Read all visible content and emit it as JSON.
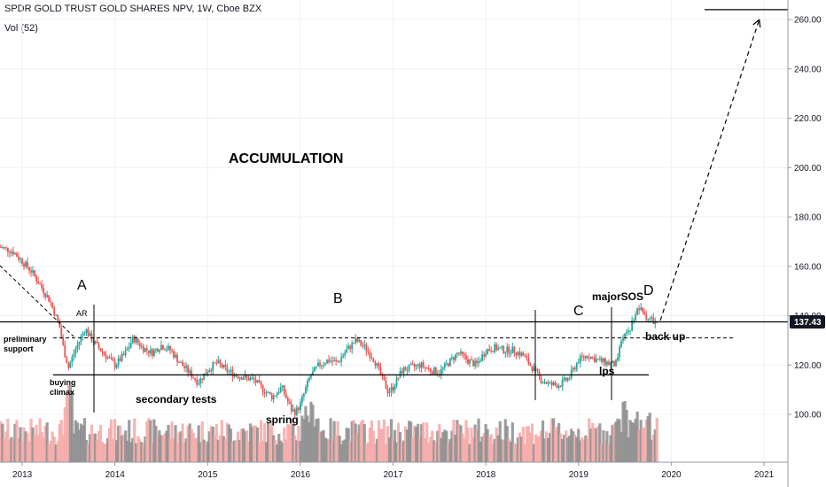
{
  "header": {
    "title": "SPDR GOLD TRUST GOLD SHARES NPV, 1W, Cboe BZX",
    "volume_label": "Vol (52)"
  },
  "chart_data": {
    "type": "candlestick",
    "price_axis": {
      "ticks": [
        "100.00",
        "120.00",
        "140.00",
        "160.00",
        "180.00",
        "200.00",
        "220.00",
        "240.00",
        "260.00"
      ],
      "range": [
        86,
        270
      ]
    },
    "time_axis": {
      "ticks": [
        "2013",
        "2014",
        "2015",
        "2016",
        "2017",
        "2018",
        "2019",
        "2020",
        "2021"
      ],
      "range": [
        2012.75,
        2021.3
      ]
    },
    "last_price": "137.43",
    "price_path": [
      [
        2012.75,
        168
      ],
      [
        2012.9,
        166
      ],
      [
        2013.0,
        162
      ],
      [
        2013.1,
        158
      ],
      [
        2013.2,
        152
      ],
      [
        2013.3,
        146
      ],
      [
        2013.4,
        136
      ],
      [
        2013.45,
        126
      ],
      [
        2013.5,
        119
      ],
      [
        2013.55,
        124
      ],
      [
        2013.62,
        130
      ],
      [
        2013.68,
        135
      ],
      [
        2013.72,
        132
      ],
      [
        2013.8,
        128
      ],
      [
        2013.9,
        124
      ],
      [
        2014.0,
        120
      ],
      [
        2014.1,
        124
      ],
      [
        2014.2,
        131
      ],
      [
        2014.3,
        127
      ],
      [
        2014.4,
        125
      ],
      [
        2014.5,
        128
      ],
      [
        2014.6,
        126
      ],
      [
        2014.7,
        121
      ],
      [
        2014.8,
        117
      ],
      [
        2014.9,
        113
      ],
      [
        2015.0,
        118
      ],
      [
        2015.1,
        121
      ],
      [
        2015.2,
        118
      ],
      [
        2015.3,
        116
      ],
      [
        2015.4,
        115
      ],
      [
        2015.5,
        114
      ],
      [
        2015.6,
        110
      ],
      [
        2015.7,
        107
      ],
      [
        2015.8,
        111
      ],
      [
        2015.9,
        102
      ],
      [
        2015.95,
        101
      ],
      [
        2016.0,
        104
      ],
      [
        2016.1,
        115
      ],
      [
        2016.2,
        120
      ],
      [
        2016.3,
        122
      ],
      [
        2016.4,
        121
      ],
      [
        2016.5,
        126
      ],
      [
        2016.6,
        130
      ],
      [
        2016.7,
        127
      ],
      [
        2016.8,
        122
      ],
      [
        2016.9,
        113
      ],
      [
        2016.95,
        109
      ],
      [
        2017.0,
        111
      ],
      [
        2017.1,
        118
      ],
      [
        2017.2,
        119
      ],
      [
        2017.3,
        120
      ],
      [
        2017.4,
        118
      ],
      [
        2017.5,
        117
      ],
      [
        2017.6,
        121
      ],
      [
        2017.7,
        125
      ],
      [
        2017.8,
        122
      ],
      [
        2017.9,
        120
      ],
      [
        2018.0,
        126
      ],
      [
        2018.1,
        127
      ],
      [
        2018.2,
        126
      ],
      [
        2018.3,
        126
      ],
      [
        2018.4,
        124
      ],
      [
        2018.5,
        119
      ],
      [
        2018.6,
        114
      ],
      [
        2018.7,
        112
      ],
      [
        2018.8,
        112
      ],
      [
        2018.9,
        115
      ],
      [
        2019.0,
        122
      ],
      [
        2019.1,
        124
      ],
      [
        2019.2,
        122
      ],
      [
        2019.3,
        121
      ],
      [
        2019.4,
        120
      ],
      [
        2019.45,
        127
      ],
      [
        2019.5,
        133
      ],
      [
        2019.55,
        134
      ],
      [
        2019.6,
        140
      ],
      [
        2019.65,
        143
      ],
      [
        2019.7,
        141
      ],
      [
        2019.75,
        139
      ],
      [
        2019.8,
        138
      ],
      [
        2019.85,
        137.43
      ]
    ],
    "annotations": {
      "accumulation": "ACCUMULATION",
      "phase_a": "A",
      "phase_b": "B",
      "phase_c": "C",
      "phase_d": "D",
      "ar": "AR",
      "preliminary_support_1": "preliminary",
      "preliminary_support_2": "support",
      "buying_climax_1": "buying",
      "buying_climax_2": "climax",
      "secondary_tests": "secondary tests",
      "spring": "spring",
      "lps": "lps",
      "major_sos": "majorSOS",
      "back_up": "back up"
    },
    "levels": {
      "upper_resistance": 137.5,
      "dashed_support": 131,
      "lower_support": 116,
      "target_line": 264,
      "projection_target": 260
    },
    "colors": {
      "up": "#26a69a",
      "down": "#ef5350",
      "vol_up": "#8c8c8c",
      "vol_down": "#f4a8a6",
      "price_box": "#131722"
    }
  }
}
